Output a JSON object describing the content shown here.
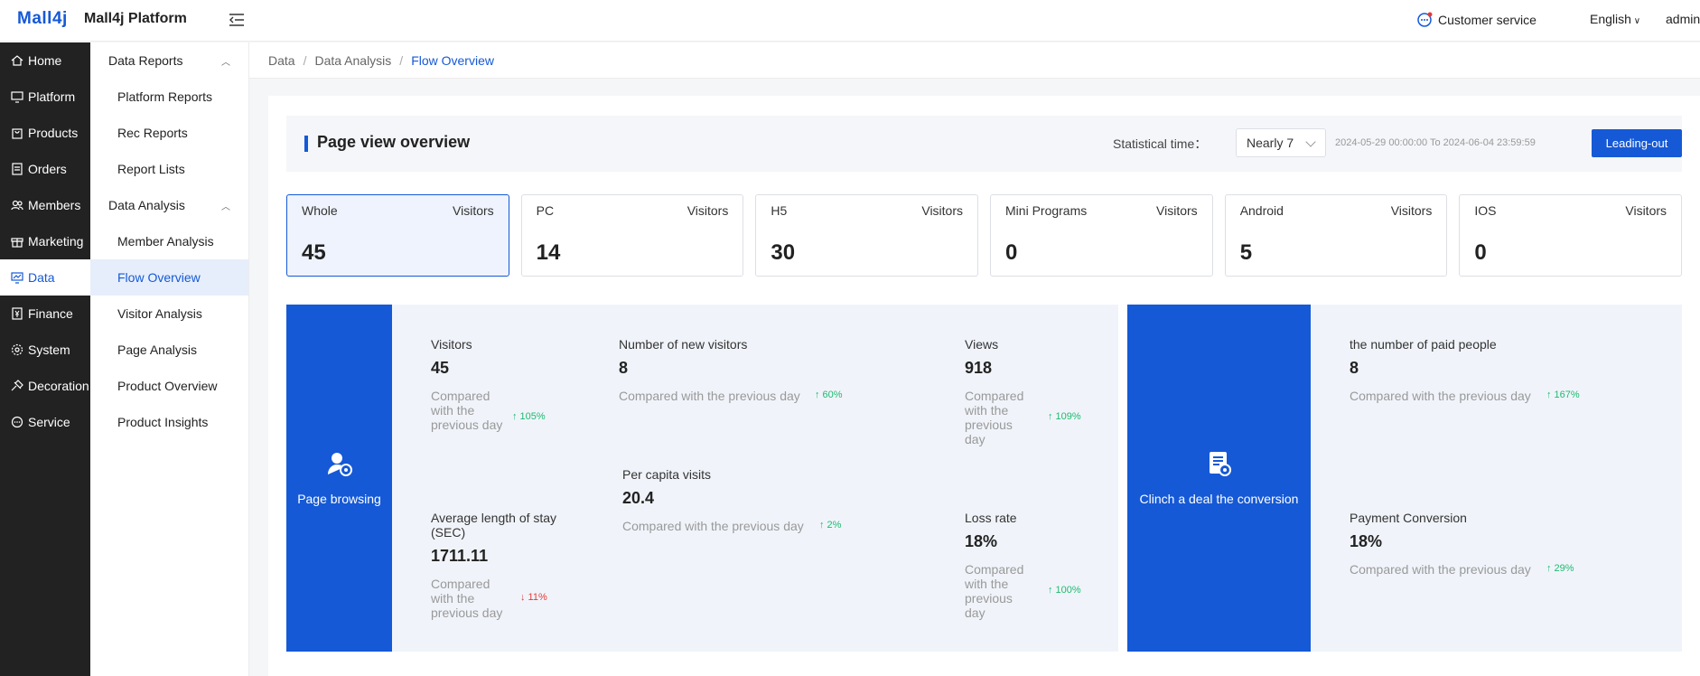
{
  "header": {
    "logo": "Mall4j",
    "platform_name": "Mall4j Platform",
    "customer_service": "Customer service",
    "language": "English",
    "user": "admin"
  },
  "nav": {
    "items": [
      {
        "label": "Home",
        "icon": "home-icon"
      },
      {
        "label": "Platform",
        "icon": "monitor-icon"
      },
      {
        "label": "Products",
        "icon": "bag-icon"
      },
      {
        "label": "Orders",
        "icon": "document-icon"
      },
      {
        "label": "Members",
        "icon": "users-icon"
      },
      {
        "label": "Marketing",
        "icon": "gift-icon"
      },
      {
        "label": "Data",
        "icon": "chart-icon",
        "active": true
      },
      {
        "label": "Finance",
        "icon": "finance-icon"
      },
      {
        "label": "System",
        "icon": "gear-icon"
      },
      {
        "label": "Decoration",
        "icon": "palette-icon"
      },
      {
        "label": "Service",
        "icon": "chat-icon"
      }
    ]
  },
  "subnav": {
    "group1": "Data Reports",
    "group1_items": [
      "Platform Reports",
      "Rec Reports",
      "Report Lists"
    ],
    "group2": "Data Analysis",
    "group2_items": [
      "Member Analysis",
      "Flow Overview",
      "Visitor Analysis",
      "Page Analysis",
      "Product Overview",
      "Product Insights"
    ]
  },
  "breadcrumb": {
    "a": "Data",
    "b": "Data Analysis",
    "c": "Flow Overview"
  },
  "overview": {
    "title": "Page view overview",
    "stat_label": "Statistical time：",
    "stat_value": "Nearly 7",
    "date_range": "2024-05-29 00:00:00 To 2024-06-04 23:59:59",
    "export_label": "Leading-out"
  },
  "cards": [
    {
      "name": "Whole",
      "metric": "Visitors",
      "value": "45"
    },
    {
      "name": "PC",
      "metric": "Visitors",
      "value": "14"
    },
    {
      "name": "H5",
      "metric": "Visitors",
      "value": "30"
    },
    {
      "name": "Mini Programs",
      "metric": "Visitors",
      "value": "0"
    },
    {
      "name": "Android",
      "metric": "Visitors",
      "value": "5"
    },
    {
      "name": "IOS",
      "metric": "Visitors",
      "value": "0"
    }
  ],
  "browsing": {
    "label": "Page browsing",
    "visitors": {
      "label": "Visitors",
      "value": "45",
      "compare": "Compared with the previous day",
      "change": "↑ 105%"
    },
    "new_visitors": {
      "label": "Number of new visitors",
      "value": "8",
      "compare": "Compared with the previous day",
      "change": "↑ 60%"
    },
    "views": {
      "label": "Views",
      "value": "918",
      "compare": "Compared with the previous day",
      "change": "↑ 109%"
    },
    "per_capita": {
      "label": "Per capita visits",
      "value": "20.4",
      "compare": "Compared with the previous day",
      "change": "↑ 2%"
    },
    "avg_stay": {
      "label": "Average length of stay (SEC)",
      "value": "1711.11",
      "compare": "Compared with the previous day",
      "change": "↓ 11%"
    },
    "loss_rate": {
      "label": "Loss rate",
      "value": "18%",
      "compare": "Compared with the previous day",
      "change": "↑ 100%"
    }
  },
  "conversion": {
    "label": "Clinch a deal the conversion",
    "paid": {
      "label": "the number of paid people",
      "value": "8",
      "compare": "Compared with the previous day",
      "change": "↑ 167%"
    },
    "payment": {
      "label": "Payment Conversion",
      "value": "18%",
      "compare": "Compared with the previous day",
      "change": "↑ 29%"
    }
  },
  "colors": {
    "accent": "#1559d6",
    "sidebar": "#222222",
    "up": "#1fba6f",
    "down": "#e53935"
  }
}
